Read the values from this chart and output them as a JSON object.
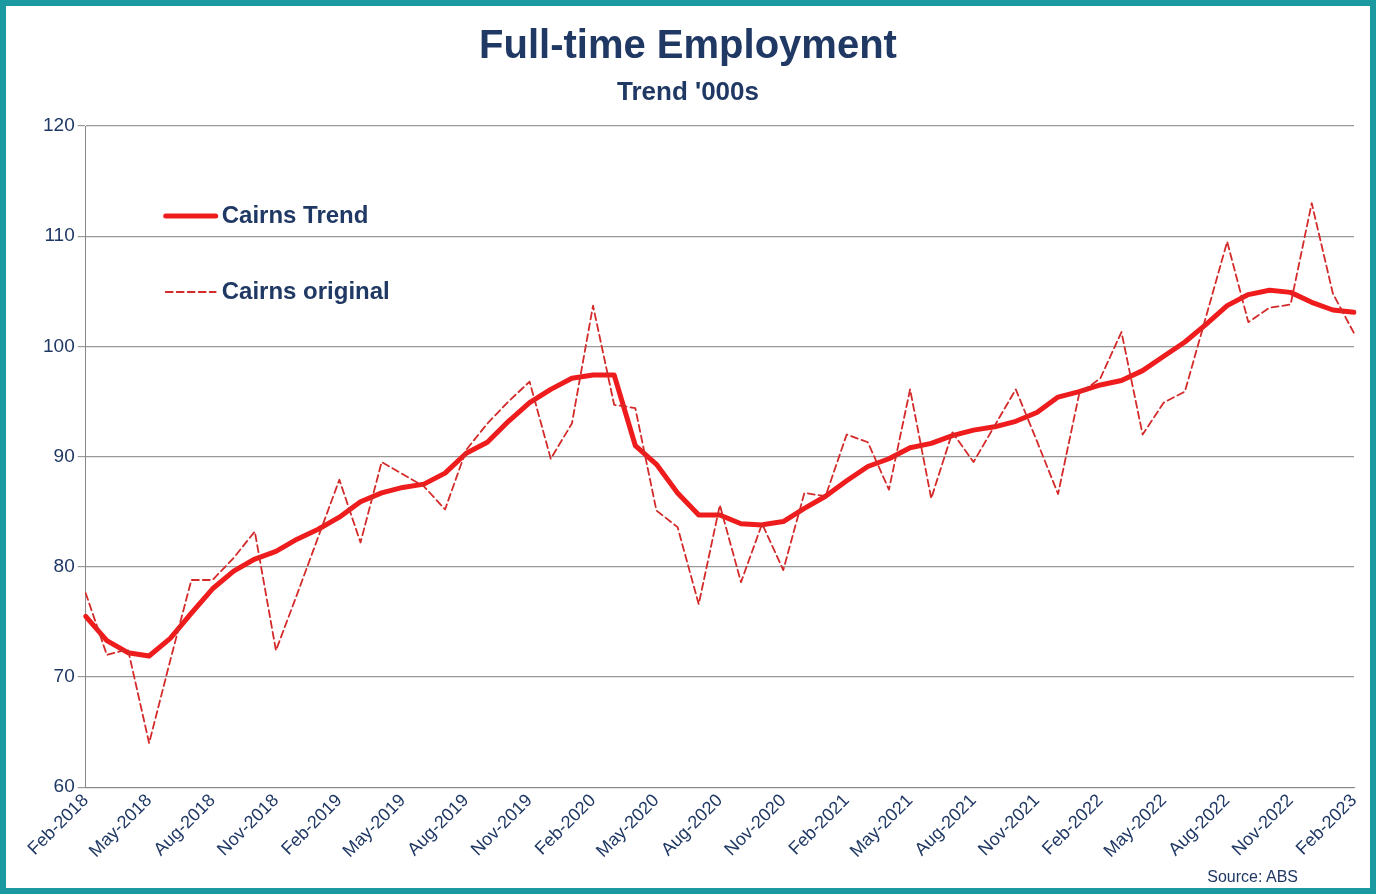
{
  "chart_data": {
    "type": "line",
    "title": "Full-time Employment",
    "subtitle": "Trend '000s",
    "categories": [
      "Feb-2018",
      null,
      null,
      "May-2018",
      null,
      null,
      "Aug-2018",
      null,
      null,
      "Nov-2018",
      null,
      null,
      "Feb-2019",
      null,
      null,
      "May-2019",
      null,
      null,
      "Aug-2019",
      null,
      null,
      "Nov-2019",
      null,
      null,
      "Feb-2020",
      null,
      null,
      "May-2020",
      null,
      null,
      "Aug-2020",
      null,
      null,
      "Nov-2020",
      null,
      null,
      "Feb-2021",
      null,
      null,
      "May-2021",
      null,
      null,
      "Aug-2021",
      null,
      null,
      "Nov-2021",
      null,
      null,
      "Feb-2022",
      null,
      null,
      "May-2022",
      null,
      null,
      "Aug-2022",
      null,
      null,
      "Nov-2022",
      null,
      null,
      "Feb-2023"
    ],
    "series": [
      {
        "name": "Cairns Trend",
        "color": "#ee1c1c",
        "line_style": "solid",
        "values": [
          75.5,
          73.3,
          72.2,
          71.9,
          73.5,
          75.8,
          78,
          79.6,
          80.7,
          81.4,
          82.5,
          83.4,
          84.5,
          85.9,
          86.7,
          87.2,
          87.5,
          88.5,
          90.3,
          91.3,
          93.2,
          94.9,
          96.1,
          97.1,
          97.4,
          97.4,
          91,
          89.3,
          86.7,
          84.7,
          84.7,
          83.9,
          83.8,
          84.1,
          85.3,
          86.4,
          87.8,
          89.1,
          89.8,
          90.8,
          91.2,
          91.9,
          92.4,
          92.7,
          93.2,
          94,
          95.4,
          95.9,
          96.5,
          96.9,
          97.8,
          99.1,
          100.4,
          102,
          103.7,
          104.7,
          105.1,
          104.9,
          104,
          103.3,
          103.1
        ]
      },
      {
        "name": "Cairns original",
        "color": "#d42a2a",
        "line_style": "dashed",
        "values": [
          77.6,
          72,
          72.5,
          64,
          71.5,
          78.8,
          78.8,
          80.8,
          83.2,
          72.4,
          77.5,
          82.7,
          87.9,
          82.2,
          89.5,
          88.4,
          87.3,
          85.2,
          90.6,
          93,
          95,
          96.8,
          89.8,
          93,
          103.7,
          94.7,
          94.4,
          85.1,
          83.6,
          76.6,
          85.6,
          78.6,
          83.9,
          79.7,
          86.7,
          86.4,
          92,
          91.3,
          87,
          96.1,
          86.2,
          92.2,
          89.5,
          92.8,
          96.1,
          91.4,
          86.6,
          95.7,
          97.1,
          101.3,
          92,
          94.9,
          95.9,
          102.7,
          109.5,
          102.2,
          103.5,
          103.8,
          113,
          104.8,
          101.2
        ]
      }
    ],
    "ylim": [
      60,
      120
    ],
    "yticks": [
      60,
      70,
      80,
      90,
      100,
      110,
      120
    ],
    "grid": "y",
    "legend": "top left",
    "marker": "none",
    "annotations": [
      "Source: ABS"
    ]
  }
}
